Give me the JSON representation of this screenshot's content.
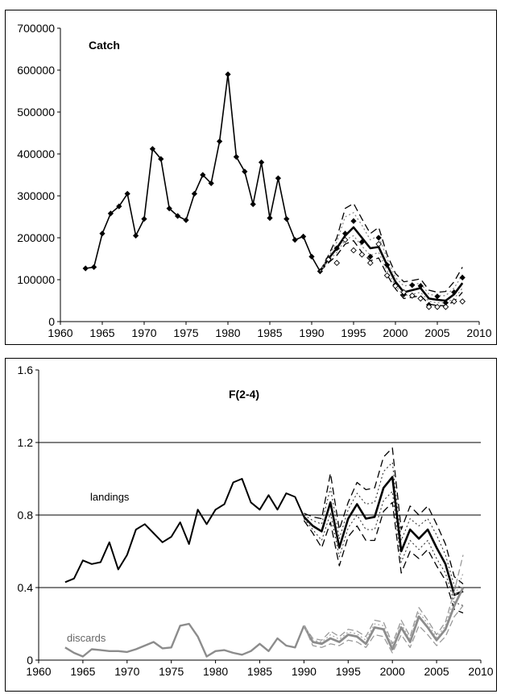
{
  "chart_data": [
    {
      "type": "line",
      "title": "Catch",
      "xlim": [
        1960,
        2010
      ],
      "ylim": [
        0,
        700000
      ],
      "x_ticks": [
        1960,
        1965,
        1970,
        1975,
        1980,
        1985,
        1990,
        1995,
        2000,
        2005,
        2010
      ],
      "y_ticks": [
        0,
        100000,
        200000,
        300000,
        400000,
        500000,
        600000,
        700000
      ],
      "grid": false,
      "series": [
        {
          "x": [
            1963,
            1964,
            1965,
            1966,
            1967,
            1968,
            1969,
            1970,
            1971,
            1972,
            1973,
            1974,
            1975,
            1976,
            1977,
            1978,
            1979,
            1980,
            1981,
            1982,
            1983,
            1984,
            1985,
            1986,
            1987,
            1988,
            1989,
            1990,
            1991
          ],
          "values": [
            127000,
            130000,
            210000,
            258000,
            275000,
            305000,
            205000,
            245000,
            412000,
            388000,
            270000,
            252000,
            242000,
            305000,
            350000,
            330000,
            430000,
            590000,
            393000,
            358000,
            280000,
            380000,
            247000,
            342000,
            245000,
            195000,
            203000,
            155000,
            120000
          ],
          "style": "solid-black-diamond-markers"
        },
        {
          "x": [
            1991,
            1992,
            1993,
            1994,
            1995,
            1996,
            1997,
            1998,
            1999,
            2000,
            2001,
            2002,
            2003,
            2004,
            2005,
            2006,
            2007,
            2008
          ],
          "values": [
            120000,
            150000,
            175000,
            205000,
            225000,
            200000,
            175000,
            178000,
            135000,
            95000,
            70000,
            75000,
            80000,
            55000,
            52000,
            50000,
            65000,
            92000
          ],
          "style": "solid-black-thick"
        },
        {
          "x": [
            1991,
            1992,
            1993,
            1994,
            1995,
            1996,
            1997,
            1998,
            1999,
            2000,
            2001,
            2002,
            2003,
            2004,
            2005,
            2006,
            2007,
            2008
          ],
          "values": [
            120000,
            158000,
            200000,
            270000,
            282000,
            245000,
            210000,
            225000,
            160000,
            115000,
            95000,
            98000,
            102000,
            75000,
            70000,
            72000,
            95000,
            130000
          ],
          "style": "dashed-black-upper"
        },
        {
          "x": [
            1991,
            1992,
            1993,
            1994,
            1995,
            1996,
            1997,
            1998,
            1999,
            2000,
            2001,
            2002,
            2003,
            2004,
            2005,
            2006,
            2007,
            2008
          ],
          "values": [
            120000,
            140000,
            158000,
            185000,
            193000,
            165000,
            145000,
            152000,
            112000,
            78000,
            55000,
            58000,
            62000,
            42000,
            38000,
            38000,
            48000,
            70000
          ],
          "style": "dashed-black-lower"
        },
        {
          "x": [
            1991,
            1992,
            1993,
            1994,
            1995,
            1996,
            1997,
            1998,
            1999,
            2000,
            2001,
            2002,
            2003,
            2004,
            2005,
            2006,
            2007,
            2008
          ],
          "values": [
            120000,
            154000,
            190000,
            250000,
            260000,
            230000,
            195000,
            205000,
            150000,
            105000,
            85000,
            88000,
            92000,
            65000,
            62000,
            62000,
            80000,
            112000
          ],
          "style": "dotted-grey-upper"
        },
        {
          "x": [
            1991,
            1992,
            1993,
            1994,
            1995,
            1996,
            1997,
            1998,
            1999,
            2000,
            2001,
            2002,
            2003,
            2004,
            2005,
            2006,
            2007,
            2008
          ],
          "values": [
            120000,
            145000,
            165000,
            195000,
            205000,
            180000,
            158000,
            165000,
            122000,
            85000,
            62000,
            65000,
            70000,
            48000,
            45000,
            45000,
            55000,
            80000
          ],
          "style": "dotted-grey-lower"
        },
        {
          "x": [
            1992,
            1993,
            1994,
            1995,
            1996,
            1997,
            1998,
            1999,
            2000,
            2001,
            2002,
            2003,
            2004,
            2005,
            2006,
            2007,
            2008
          ],
          "values": [
            150000,
            175000,
            210000,
            240000,
            190000,
            155000,
            200000,
            135000,
            88000,
            65000,
            87000,
            85000,
            40000,
            60000,
            45000,
            70000,
            105000
          ],
          "style": "filled-diamond-markers"
        },
        {
          "x": [
            1992,
            1993,
            1994,
            1995,
            1996,
            1997,
            1998,
            1999,
            2000,
            2001,
            2002,
            2003,
            2004,
            2005,
            2006,
            2007,
            2008
          ],
          "values": [
            148000,
            140000,
            195000,
            170000,
            160000,
            140000,
            185000,
            110000,
            85000,
            70000,
            62000,
            55000,
            35000,
            35000,
            35000,
            48000,
            48000
          ],
          "style": "open-diamond-markers"
        }
      ]
    },
    {
      "type": "line",
      "title": "F(2-4)",
      "xlim": [
        1960,
        2010
      ],
      "ylim": [
        0,
        1.6
      ],
      "x_ticks": [
        1960,
        1965,
        1970,
        1975,
        1980,
        1985,
        1990,
        1995,
        2000,
        2005,
        2010
      ],
      "y_ticks": [
        "0",
        "0.4",
        "0.8",
        "1.2",
        "1.6"
      ],
      "y_tick_values": [
        0,
        0.4,
        0.8,
        1.2,
        1.6
      ],
      "gridlines_y": [
        0.4,
        0.8,
        1.2
      ],
      "annotations": [
        "landings",
        "discards"
      ],
      "series": [
        {
          "name": "landings",
          "x": [
            1963,
            1964,
            1965,
            1966,
            1967,
            1968,
            1969,
            1970,
            1971,
            1972,
            1973,
            1974,
            1975,
            1976,
            1977,
            1978,
            1979,
            1980,
            1981,
            1982,
            1983,
            1984,
            1985,
            1986,
            1987,
            1988,
            1989,
            1990
          ],
          "values": [
            0.43,
            0.45,
            0.55,
            0.53,
            0.54,
            0.65,
            0.5,
            0.58,
            0.72,
            0.75,
            0.7,
            0.65,
            0.68,
            0.76,
            0.64,
            0.83,
            0.75,
            0.83,
            0.86,
            0.98,
            1.0,
            0.87,
            0.83,
            0.91,
            0.83,
            0.92,
            0.9,
            0.79
          ],
          "style": "solid-black"
        },
        {
          "x": [
            1990,
            1991,
            1992,
            1993,
            1994,
            1995,
            1996,
            1997,
            1998,
            1999,
            2000,
            2001,
            2002,
            2003,
            2004,
            2005,
            2006,
            2007,
            2008
          ],
          "values": [
            0.79,
            0.74,
            0.71,
            0.87,
            0.62,
            0.78,
            0.86,
            0.78,
            0.79,
            0.95,
            1.01,
            0.6,
            0.72,
            0.67,
            0.72,
            0.62,
            0.53,
            0.36,
            0.38
          ],
          "style": "solid-black-thick"
        },
        {
          "x": [
            1990,
            1991,
            1992,
            1993,
            1994,
            1995,
            1996,
            1997,
            1998,
            1999,
            2000,
            2001,
            2002,
            2003,
            2004,
            2005,
            2006,
            2007,
            2008
          ],
          "values": [
            0.81,
            0.79,
            0.78,
            1.03,
            0.72,
            0.87,
            0.98,
            0.94,
            0.95,
            1.12,
            1.17,
            0.72,
            0.85,
            0.8,
            0.85,
            0.75,
            0.64,
            0.46,
            0.42
          ],
          "style": "dashed-black-upper"
        },
        {
          "x": [
            1990,
            1991,
            1992,
            1993,
            1994,
            1995,
            1996,
            1997,
            1998,
            1999,
            2000,
            2001,
            2002,
            2003,
            2004,
            2005,
            2006,
            2007,
            2008
          ],
          "values": [
            0.77,
            0.7,
            0.62,
            0.76,
            0.52,
            0.68,
            0.74,
            0.66,
            0.66,
            0.82,
            0.87,
            0.48,
            0.6,
            0.56,
            0.61,
            0.52,
            0.44,
            0.28,
            0.26
          ],
          "style": "dashed-black-lower"
        },
        {
          "x": [
            1990,
            1991,
            1992,
            1993,
            1994,
            1995,
            1996,
            1997,
            1998,
            1999,
            2000,
            2001,
            2002,
            2003,
            2004,
            2005,
            2006,
            2007,
            2008
          ],
          "values": [
            0.8,
            0.77,
            0.75,
            0.95,
            0.67,
            0.83,
            0.92,
            0.86,
            0.87,
            1.04,
            1.09,
            0.66,
            0.78,
            0.74,
            0.78,
            0.69,
            0.58,
            0.41,
            0.4
          ],
          "style": "dotted-black-upper"
        },
        {
          "x": [
            1990,
            1991,
            1992,
            1993,
            1994,
            1995,
            1996,
            1997,
            1998,
            1999,
            2000,
            2001,
            2002,
            2003,
            2004,
            2005,
            2006,
            2007,
            2008
          ],
          "values": [
            0.78,
            0.72,
            0.66,
            0.81,
            0.57,
            0.73,
            0.8,
            0.72,
            0.72,
            0.88,
            0.93,
            0.54,
            0.66,
            0.61,
            0.66,
            0.56,
            0.48,
            0.32,
            0.3
          ],
          "style": "dotted-black-lower"
        },
        {
          "name": "discards",
          "x": [
            1963,
            1964,
            1965,
            1966,
            1967,
            1968,
            1969,
            1970,
            1971,
            1972,
            1973,
            1974,
            1975,
            1976,
            1977,
            1978,
            1979,
            1980,
            1981,
            1982,
            1983,
            1984,
            1985,
            1986,
            1987,
            1988,
            1989,
            1990
          ],
          "values": [
            0.07,
            0.04,
            0.02,
            0.06,
            0.055,
            0.05,
            0.05,
            0.045,
            0.06,
            0.08,
            0.1,
            0.065,
            0.07,
            0.19,
            0.2,
            0.13,
            0.02,
            0.05,
            0.055,
            0.04,
            0.03,
            0.05,
            0.09,
            0.05,
            0.12,
            0.08,
            0.07,
            0.19
          ],
          "style": "solid-grey"
        },
        {
          "x": [
            1990,
            1991,
            1992,
            1993,
            1994,
            1995,
            1996,
            1997,
            1998,
            1999,
            2000,
            2001,
            2002,
            2003,
            2004,
            2005,
            2006,
            2007,
            2008
          ],
          "values": [
            0.19,
            0.1,
            0.09,
            0.12,
            0.1,
            0.14,
            0.13,
            0.09,
            0.18,
            0.17,
            0.06,
            0.18,
            0.1,
            0.24,
            0.18,
            0.11,
            0.17,
            0.3,
            0.4
          ],
          "style": "solid-grey-thick"
        },
        {
          "x": [
            1990,
            1991,
            1992,
            1993,
            1994,
            1995,
            1996,
            1997,
            1998,
            1999,
            2000,
            2001,
            2002,
            2003,
            2004,
            2005,
            2006,
            2007,
            2008
          ],
          "values": [
            0.19,
            0.12,
            0.11,
            0.16,
            0.13,
            0.17,
            0.16,
            0.13,
            0.22,
            0.21,
            0.09,
            0.22,
            0.13,
            0.29,
            0.22,
            0.14,
            0.21,
            0.38,
            0.58
          ],
          "style": "dashed-grey-upper"
        },
        {
          "x": [
            1990,
            1991,
            1992,
            1993,
            1994,
            1995,
            1996,
            1997,
            1998,
            1999,
            2000,
            2001,
            2002,
            2003,
            2004,
            2005,
            2006,
            2007,
            2008
          ],
          "values": [
            0.19,
            0.08,
            0.07,
            0.09,
            0.08,
            0.11,
            0.1,
            0.07,
            0.14,
            0.13,
            0.04,
            0.14,
            0.07,
            0.19,
            0.14,
            0.08,
            0.13,
            0.24,
            0.3
          ],
          "style": "dashed-grey-lower"
        },
        {
          "x": [
            1990,
            1991,
            1992,
            1993,
            1994,
            1995,
            1996,
            1997,
            1998,
            1999,
            2000,
            2001,
            2002,
            2003,
            2004,
            2005,
            2006,
            2007,
            2008
          ],
          "values": [
            0.19,
            0.11,
            0.1,
            0.14,
            0.115,
            0.155,
            0.145,
            0.11,
            0.2,
            0.19,
            0.075,
            0.2,
            0.115,
            0.265,
            0.2,
            0.125,
            0.19,
            0.34,
            0.48
          ],
          "style": "dotted-grey-mid"
        }
      ]
    }
  ],
  "colors": {
    "line": "#000000",
    "grey": "#8c8c8c",
    "grey_light": "#aaaaaa"
  }
}
